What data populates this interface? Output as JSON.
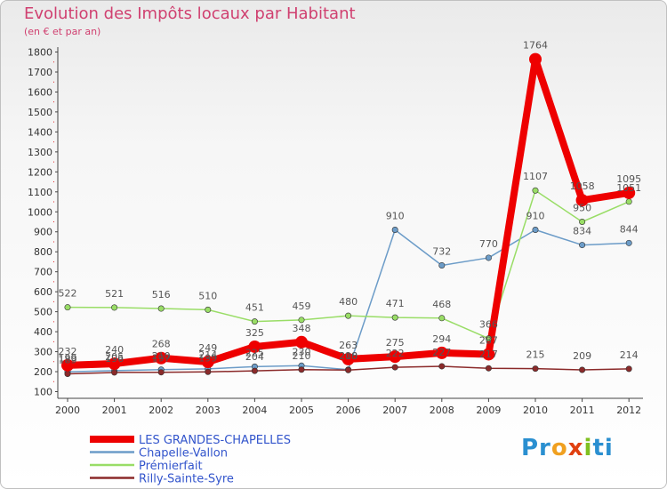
{
  "title": "Evolution des Impôts locaux par Habitant",
  "subtitle": "(en € et par an)",
  "brand": {
    "parts": [
      "Pr",
      "o",
      "x",
      "i",
      "ti"
    ],
    "colors": [
      "#2a8fd0",
      "#f0a020",
      "#e04010",
      "#80c020",
      "#2a8fd0"
    ]
  },
  "chart_data": {
    "type": "line",
    "title": "Evolution des Impôts locaux par Habitant",
    "subtitle": "(en € et par an)",
    "x": [
      "2000",
      "2001",
      "2002",
      "2003",
      "2004",
      "2005",
      "2006",
      "2007",
      "2008",
      "2009",
      "2010",
      "2011",
      "2012"
    ],
    "ylim": [
      100,
      1800
    ],
    "yticks": [
      100,
      200,
      300,
      400,
      500,
      600,
      700,
      800,
      900,
      1000,
      1100,
      1200,
      1300,
      1400,
      1500,
      1600,
      1700,
      1800
    ],
    "grid": false,
    "series": [
      {
        "name": "LES GRANDES-CHAPELLES",
        "color": "#ee0000",
        "width": 8,
        "marker": 7,
        "values": [
          232,
          240,
          268,
          249,
          325,
          348,
          263,
          275,
          294,
          287,
          1764,
          1058,
          1095
        ]
      },
      {
        "name": "Chapelle-Vallon",
        "color": "#6c9cc8",
        "width": 1.5,
        "marker": 3.2,
        "values": [
          199,
          205,
          210,
          214,
          225,
          230,
          210,
          910,
          732,
          770,
          910,
          834,
          844
        ]
      },
      {
        "name": "Prémierfait",
        "color": "#99dd66",
        "width": 1.5,
        "marker": 3.2,
        "values": [
          522,
          521,
          516,
          510,
          451,
          459,
          480,
          471,
          468,
          366,
          1107,
          950,
          1051
        ]
      },
      {
        "name": "Rilly-Sainte-Syre",
        "color": "#8b2a2a",
        "width": 1.5,
        "marker": 3.2,
        "values": [
          189,
          196,
          197,
          199,
          204,
          210,
          208,
          222,
          227,
          217,
          215,
          209,
          214
        ]
      }
    ],
    "legend": {
      "position": "bottom-left"
    }
  }
}
